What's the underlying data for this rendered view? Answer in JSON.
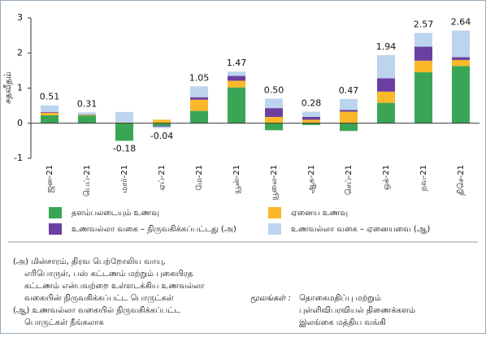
{
  "chart_data": {
    "type": "bar",
    "stacked": true,
    "ylabel": "சதவீதம்",
    "categories": [
      "ஜன-21",
      "பெப்-21",
      "மார்-21",
      "ஏப்-21",
      "மே-21",
      "யூன்-21",
      "யூலை-21",
      "ஆக-21",
      "செப்-21",
      "ஒக்-21",
      "நவ-21",
      "திசெ-21"
    ],
    "series": [
      {
        "name": "தளம்பலடையும் உணவு",
        "color": "#3aa655",
        "values": [
          0.23,
          0.22,
          -0.5,
          -0.08,
          0.35,
          1.02,
          -0.2,
          -0.05,
          -0.22,
          0.58,
          1.45,
          1.63
        ]
      },
      {
        "name": "ஏனைய உணவு",
        "color": "#fbb829",
        "values": [
          0.07,
          0.02,
          0.02,
          0.1,
          0.32,
          0.19,
          0.18,
          0.1,
          0.33,
          0.32,
          0.33,
          0.17
        ]
      },
      {
        "name": "உணவல்லா வகை – நிருவகிக்கப்பட்டது (அ)",
        "color": "#6b3fa0",
        "values": [
          0.02,
          0.01,
          0,
          -0.02,
          0.07,
          0.14,
          0.25,
          0.08,
          0.05,
          0.38,
          0.4,
          0.08
        ]
      },
      {
        "name": "உணவல்லா வகை – ஏனையவை (ஆ)",
        "color": "#bcd4ee",
        "values": [
          0.19,
          0.06,
          0.3,
          -0.04,
          0.31,
          0.12,
          0.27,
          0.15,
          0.31,
          0.66,
          0.39,
          0.76
        ]
      }
    ],
    "totals": [
      0.51,
      0.31,
      -0.18,
      -0.04,
      1.05,
      1.47,
      0.5,
      0.28,
      0.47,
      1.94,
      2.57,
      2.64
    ],
    "totals_labels": [
      "0.51",
      "0.31",
      "-0.18",
      "-0.04",
      "1.05",
      "1.47",
      "0.50",
      "0.28",
      "0.47",
      "1.94",
      "2.57",
      "2.64"
    ],
    "ylim": [
      -1,
      3
    ],
    "yticks": [
      -1,
      0,
      1,
      2,
      3
    ],
    "grid": false,
    "notes": [
      "(அ) மின்சாரம், திரவ பெற்றோலிய வாயு,",
      "எரிபொருள், பஸ் கட்டணம் மற்றும் புகையிரத",
      "கட்டணம் என்பவற்றை உள்ளடக்கிய உணவல்லா",
      "வகையின் நிருவகிக்கப்பட்ட பொருட்கள்",
      "(ஆ) உணவல்லா வகையில் நிருவகிக்கப்பட்ட",
      "பொருட்கள் நீங்கலாக"
    ],
    "source_label": "மூலங்கள் :",
    "sources": [
      "தொகைமதிப்பு மற்றும்",
      "புள்ளிவிபரவியல் திணைக்களம்",
      "இலங்கை மத்திய வங்கி"
    ]
  }
}
